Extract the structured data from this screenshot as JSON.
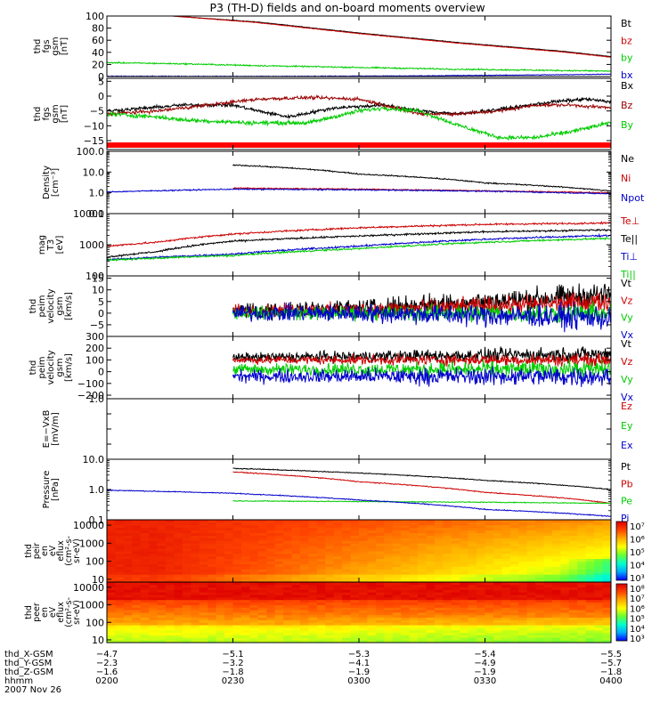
{
  "chart_data": {
    "type": "line",
    "title": "P3 (TH-D) fields and on-board moments overview",
    "time_range": [
      "0200",
      "0400"
    ],
    "panels": [
      {
        "id": "fgs-gsm-total",
        "ylabel": [
          "thd",
          "fgs",
          "gsm",
          "[nT]"
        ],
        "yscale": "linear",
        "ylim": [
          0,
          100
        ],
        "ticks": [
          0,
          20,
          40,
          60,
          80,
          100
        ],
        "tick_labels": [
          "0",
          "20",
          "40",
          "60",
          "80",
          "100"
        ],
        "series": [
          {
            "name": "Bt",
            "color": "#000000",
            "t": [
              0.13,
              0.3,
              0.5,
              0.7,
              0.9,
              1.0
            ],
            "y": [
              100,
              90,
              72,
              56,
              42,
              33
            ],
            "noise": 0.3
          },
          {
            "name": "bz",
            "color": "#cc0000",
            "t": [
              0.13,
              0.3,
              0.5,
              0.7,
              0.9,
              1.0
            ],
            "y": [
              100,
              89,
              71,
              55,
              41,
              32
            ],
            "noise": 0.3
          },
          {
            "name": "by",
            "color": "#00cc00",
            "t": [
              0,
              0.15,
              0.3,
              0.5,
              0.7,
              0.9,
              1.0
            ],
            "y": [
              23,
              21,
              18,
              15,
              12,
              10,
              9
            ],
            "noise": 0.8
          },
          {
            "name": "bx",
            "color": "#0000cc",
            "t": [
              0,
              0.3,
              0.6,
              0.9,
              1.0
            ],
            "y": [
              0.5,
              0.3,
              1,
              3,
              4
            ],
            "noise": 0.4
          }
        ]
      },
      {
        "id": "fgs-gsm-components",
        "ylabel": [
          "thd",
          "fgs",
          "gsm",
          "[nT]"
        ],
        "yscale": "linear",
        "ylim": [
          -18,
          6
        ],
        "ticks": [
          -15,
          -10,
          -5,
          0,
          5
        ],
        "tick_labels": [
          "−15",
          "−10",
          "−5",
          "0",
          "5"
        ],
        "red_bar": true,
        "series": [
          {
            "name": "Bx",
            "color": "#000000",
            "t": [
              0,
              0.08,
              0.15,
              0.25,
              0.3,
              0.36,
              0.45,
              0.55,
              0.62,
              0.7,
              0.8,
              0.88,
              0.95,
              1.0
            ],
            "y": [
              -5,
              -4,
              -3,
              -3,
              -5,
              -7,
              -4,
              -3,
              -5,
              -6,
              -4,
              -2,
              -1,
              -2
            ],
            "noise": 0.4
          },
          {
            "name": "Bz",
            "color": "#990000",
            "t": [
              0,
              0.1,
              0.2,
              0.3,
              0.4,
              0.5,
              0.55,
              0.62,
              0.7,
              0.78,
              0.85,
              0.92,
              1.0
            ],
            "y": [
              -6,
              -5,
              -3,
              -1,
              -0.5,
              -1,
              -3,
              -6,
              -6,
              -5,
              -3,
              -3,
              -4
            ],
            "noise": 0.4
          },
          {
            "name": "By",
            "color": "#00cc00",
            "t": [
              0,
              0.1,
              0.15,
              0.28,
              0.4,
              0.5,
              0.55,
              0.62,
              0.7,
              0.78,
              0.85,
              0.92,
              1.0
            ],
            "y": [
              -6,
              -7,
              -8,
              -9,
              -9,
              -5,
              -4,
              -5,
              -10,
              -14,
              -14,
              -12,
              -9
            ],
            "noise": 0.5
          }
        ]
      },
      {
        "id": "density",
        "ylabel": [
          "Density",
          "[cm⁻³]"
        ],
        "yscale": "log",
        "ylim": [
          0.1,
          100
        ],
        "ticks": [
          0.1,
          1,
          10,
          100
        ],
        "tick_labels": [
          "0.1",
          "1.0",
          "10.0",
          "100.0"
        ],
        "series": [
          {
            "name": "Ne",
            "color": "#000000",
            "t": [
              0.25,
              0.5,
              0.75,
              1.0
            ],
            "y": [
              22,
              8,
              3,
              1.2
            ],
            "noise": 0.02
          },
          {
            "name": "Ni",
            "color": "#cc0000",
            "t": [
              0.25,
              0.5,
              0.75,
              1.0
            ],
            "y": [
              1.7,
              1.5,
              1.25,
              1.0
            ],
            "noise": 0.02
          },
          {
            "name": "Npot",
            "color": "#0000cc",
            "t": [
              0,
              0.12,
              0.25,
              0.5,
              0.75,
              1.0
            ],
            "y": [
              1.1,
              1.3,
              1.5,
              1.4,
              1.2,
              0.9
            ],
            "noise": 0.02
          }
        ]
      },
      {
        "id": "temperature",
        "ylabel": [
          "mag",
          "T3",
          "[eV]"
        ],
        "yscale": "log",
        "ylim": [
          100,
          10000
        ],
        "ticks": [
          100,
          1000,
          10000
        ],
        "tick_labels": [
          "100",
          "1000",
          "10000"
        ],
        "series": [
          {
            "name": "Te⊥",
            "color": "#cc0000",
            "t": [
              0,
              0.1,
              0.25,
              0.5,
              0.75,
              1.0
            ],
            "y": [
              900,
              1200,
              2200,
              3500,
              4500,
              5000
            ],
            "noise": 0.02
          },
          {
            "name": "Te||",
            "color": "#000000",
            "t": [
              0,
              0.1,
              0.25,
              0.5,
              0.75,
              1.0
            ],
            "y": [
              400,
              600,
              1300,
              1900,
              2600,
              3000
            ],
            "noise": 0.02
          },
          {
            "name": "Ti⊥",
            "color": "#0000cc",
            "t": [
              0,
              0.25,
              0.5,
              0.75,
              1.0
            ],
            "y": [
              330,
              500,
              900,
              1500,
              2000
            ],
            "noise": 0.02
          },
          {
            "name": "Ti||",
            "color": "#00cc00",
            "t": [
              0,
              0.25,
              0.5,
              0.75,
              1.0
            ],
            "y": [
              320,
              450,
              750,
              1200,
              1600
            ],
            "noise": 0.02
          }
        ]
      },
      {
        "id": "peim-velocity-small",
        "ylabel": [
          "thd",
          "peim",
          "velocity",
          "gsm",
          "[km/s]"
        ],
        "yscale": "linear",
        "ylim": [
          -10,
          16
        ],
        "ticks": [
          -5,
          0,
          5,
          10,
          15
        ],
        "tick_labels": [
          "−5",
          "0",
          "5",
          "10",
          "15"
        ],
        "series": [
          {
            "name": "Vt",
            "color": "#000000",
            "t": [
              0.25,
              0.5,
              0.75,
              1.0
            ],
            "y": [
              1,
              2,
              5,
              8
            ],
            "noise": 2.5
          },
          {
            "name": "Vz",
            "color": "#cc0000",
            "t": [
              0.25,
              0.5,
              0.75,
              1.0
            ],
            "y": [
              1,
              1.5,
              3,
              5
            ],
            "noise": 2
          },
          {
            "name": "Vy",
            "color": "#00cc00",
            "t": [
              0.25,
              0.5,
              0.75,
              1.0
            ],
            "y": [
              0,
              0,
              0,
              0
            ],
            "noise": 2
          },
          {
            "name": "Vx",
            "color": "#0000cc",
            "t": [
              0.25,
              0.5,
              0.75,
              1.0
            ],
            "y": [
              0,
              0,
              -1,
              -2
            ],
            "noise": 2.5
          }
        ]
      },
      {
        "id": "peim-velocity-large",
        "ylabel": [
          "thd",
          "peim",
          "velocity",
          "gsm",
          "[km/s]"
        ],
        "yscale": "linear",
        "ylim": [
          -230,
          300
        ],
        "ticks": [
          -200,
          -100,
          0,
          100,
          200,
          300
        ],
        "tick_labels": [
          "−200",
          "−100",
          "0",
          "100",
          "200",
          "300"
        ],
        "series": [
          {
            "name": "Vt",
            "color": "#000000",
            "t": [
              0.25,
              0.5,
              0.75,
              1.0
            ],
            "y": [
              120,
              130,
              140,
              150
            ],
            "noise": 30
          },
          {
            "name": "Vz",
            "color": "#cc0000",
            "t": [
              0.25,
              0.5,
              0.75,
              1.0
            ],
            "y": [
              100,
              100,
              100,
              100
            ],
            "noise": 25
          },
          {
            "name": "Vy",
            "color": "#00cc00",
            "t": [
              0.25,
              0.5,
              0.75,
              1.0
            ],
            "y": [
              20,
              20,
              20,
              20
            ],
            "noise": 35
          },
          {
            "name": "Vx",
            "color": "#0000cc",
            "t": [
              0.25,
              0.5,
              0.75,
              1.0
            ],
            "y": [
              -40,
              -40,
              -40,
              -40
            ],
            "noise": 40
          }
        ]
      },
      {
        "id": "efield",
        "ylabel": [
          "E=−VxB",
          "[mV/m]"
        ],
        "yscale": "linear",
        "ylim": [
          -1,
          1
        ],
        "ticks": [
          -1,
          -0.5,
          0,
          0.5,
          1
        ],
        "tick_labels": [
          "",
          "",
          "",
          "",
          "1.0"
        ],
        "series": [
          {
            "name": "Ez",
            "color": "#cc0000",
            "t": [],
            "y": []
          },
          {
            "name": "Ey",
            "color": "#00cc00",
            "t": [],
            "y": []
          },
          {
            "name": "Ex",
            "color": "#0000cc",
            "t": [],
            "y": []
          }
        ]
      },
      {
        "id": "pressure",
        "ylabel": [
          "Pressure",
          "[nPa]"
        ],
        "yscale": "log",
        "ylim": [
          0.1,
          10
        ],
        "ticks": [
          0.1,
          1,
          10
        ],
        "tick_labels": [
          "0.1",
          "1.0",
          "10.0"
        ],
        "series": [
          {
            "name": "Pt",
            "color": "#000000",
            "t": [
              0.25,
              0.5,
              0.75,
              1.0
            ],
            "y": [
              5,
              3.5,
              2,
              1.0
            ],
            "noise": 0.01
          },
          {
            "name": "Pb",
            "color": "#cc0000",
            "t": [
              0.25,
              0.5,
              0.75,
              1.0
            ],
            "y": [
              3.8,
              1.8,
              0.8,
              0.35
            ],
            "noise": 0.01
          },
          {
            "name": "Pe",
            "color": "#00cc00",
            "t": [
              0.25,
              0.5,
              0.75,
              1.0
            ],
            "y": [
              0.42,
              0.4,
              0.38,
              0.35
            ],
            "noise": 0.01
          },
          {
            "name": "Pi",
            "color": "#0000cc",
            "t": [
              0,
              0.25,
              0.5,
              0.75,
              1.0
            ],
            "y": [
              0.95,
              0.75,
              0.45,
              0.22,
              0.13
            ],
            "noise": 0.01
          }
        ]
      }
    ],
    "spectrograms": [
      {
        "id": "peir-en-eflux",
        "ylabel": [
          "thd",
          "peir",
          "en",
          "eV",
          "eflux",
          "(cm²-s-",
          "sr-eV)"
        ],
        "ylim": [
          7,
          20000
        ],
        "ticks": [
          10,
          100,
          1000,
          10000
        ],
        "tick_labels": [
          "10",
          "100",
          "1000",
          "10000"
        ],
        "cbar_labels": [
          "10⁷",
          "10⁶",
          "10⁵",
          "10⁴",
          "10³"
        ]
      },
      {
        "id": "peer-en-eflux",
        "ylabel": [
          "thd",
          "peer",
          "en",
          "eV",
          "eflux",
          "(cm²-s-",
          "sr-eV)"
        ],
        "ylim": [
          7,
          20000
        ],
        "ticks": [
          10,
          100,
          1000,
          10000
        ],
        "tick_labels": [
          "10",
          "100",
          "1000",
          "10000"
        ],
        "cbar_labels": [
          "10⁸",
          "10⁷",
          "10⁶",
          "10⁵",
          "10⁴",
          "10³"
        ]
      }
    ],
    "time_axis": {
      "row_labels": [
        "thd_X-GSM",
        "thd_Y-GSM",
        "thd_Z-GSM",
        "hhmm",
        "2007 Nov 26"
      ],
      "columns": [
        {
          "t": 0.0,
          "values": [
            "−4.7",
            "−2.3",
            "−1.6",
            "0200"
          ]
        },
        {
          "t": 0.25,
          "values": [
            "−5.1",
            "−3.2",
            "−1.8",
            "0230"
          ]
        },
        {
          "t": 0.5,
          "values": [
            "−5.3",
            "−4.1",
            "−1.9",
            "0300"
          ]
        },
        {
          "t": 0.75,
          "values": [
            "−5.4",
            "−4.9",
            "−1.9",
            "0330"
          ]
        },
        {
          "t": 1.0,
          "values": [
            "−5.5",
            "−5.7",
            "−1.8",
            "0400"
          ]
        }
      ]
    }
  }
}
